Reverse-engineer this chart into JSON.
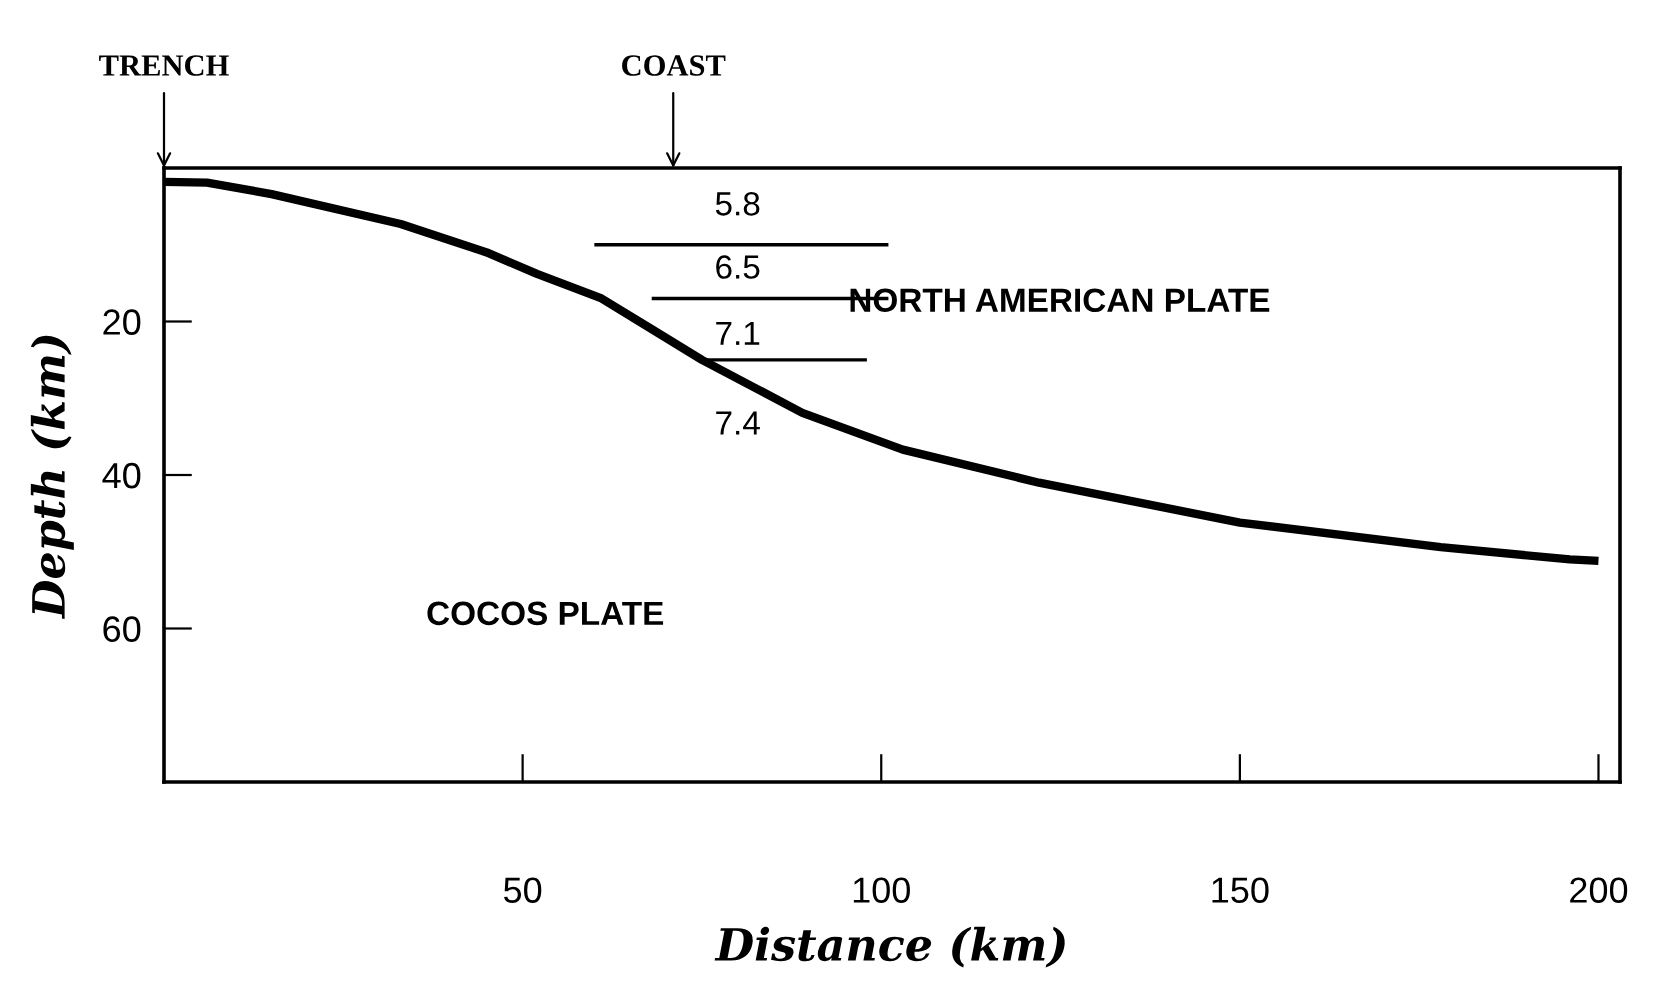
{
  "chart_data": {
    "type": "line",
    "xlabel": "Distance (km)",
    "ylabel": "Depth (km)",
    "xlim": [
      0,
      203
    ],
    "ylim": [
      80,
      0
    ],
    "xticks": [
      50,
      100,
      150,
      200
    ],
    "yticks": [
      20,
      40,
      60
    ],
    "grid": false,
    "legend": false,
    "marker": "none",
    "line_style": "solid",
    "series": [
      {
        "color": "#000000",
        "x": [
          0,
          6,
          15,
          33,
          45,
          52,
          61,
          68,
          75,
          89,
          103,
          122,
          150,
          178,
          196,
          200
        ],
        "values": [
          1.8,
          1.9,
          3.4,
          7.3,
          11,
          13.8,
          17,
          21,
          25,
          31.9,
          36.7,
          41,
          46.2,
          49.4,
          51,
          51.2
        ]
      },
      {
        "color": "#000000",
        "x": [
          60,
          101
        ],
        "values": [
          10,
          10
        ]
      },
      {
        "color": "#000000",
        "x": [
          68,
          101
        ],
        "values": [
          17,
          17
        ]
      },
      {
        "color": "#000000",
        "x": [
          75,
          98
        ],
        "values": [
          25,
          25
        ]
      }
    ],
    "annotations": [
      "TRENCH",
      "COAST",
      "5.8",
      "6.5",
      "7.1",
      "7.4",
      "NORTH AMERICAN PLATE",
      "COCOS PLATE"
    ]
  }
}
